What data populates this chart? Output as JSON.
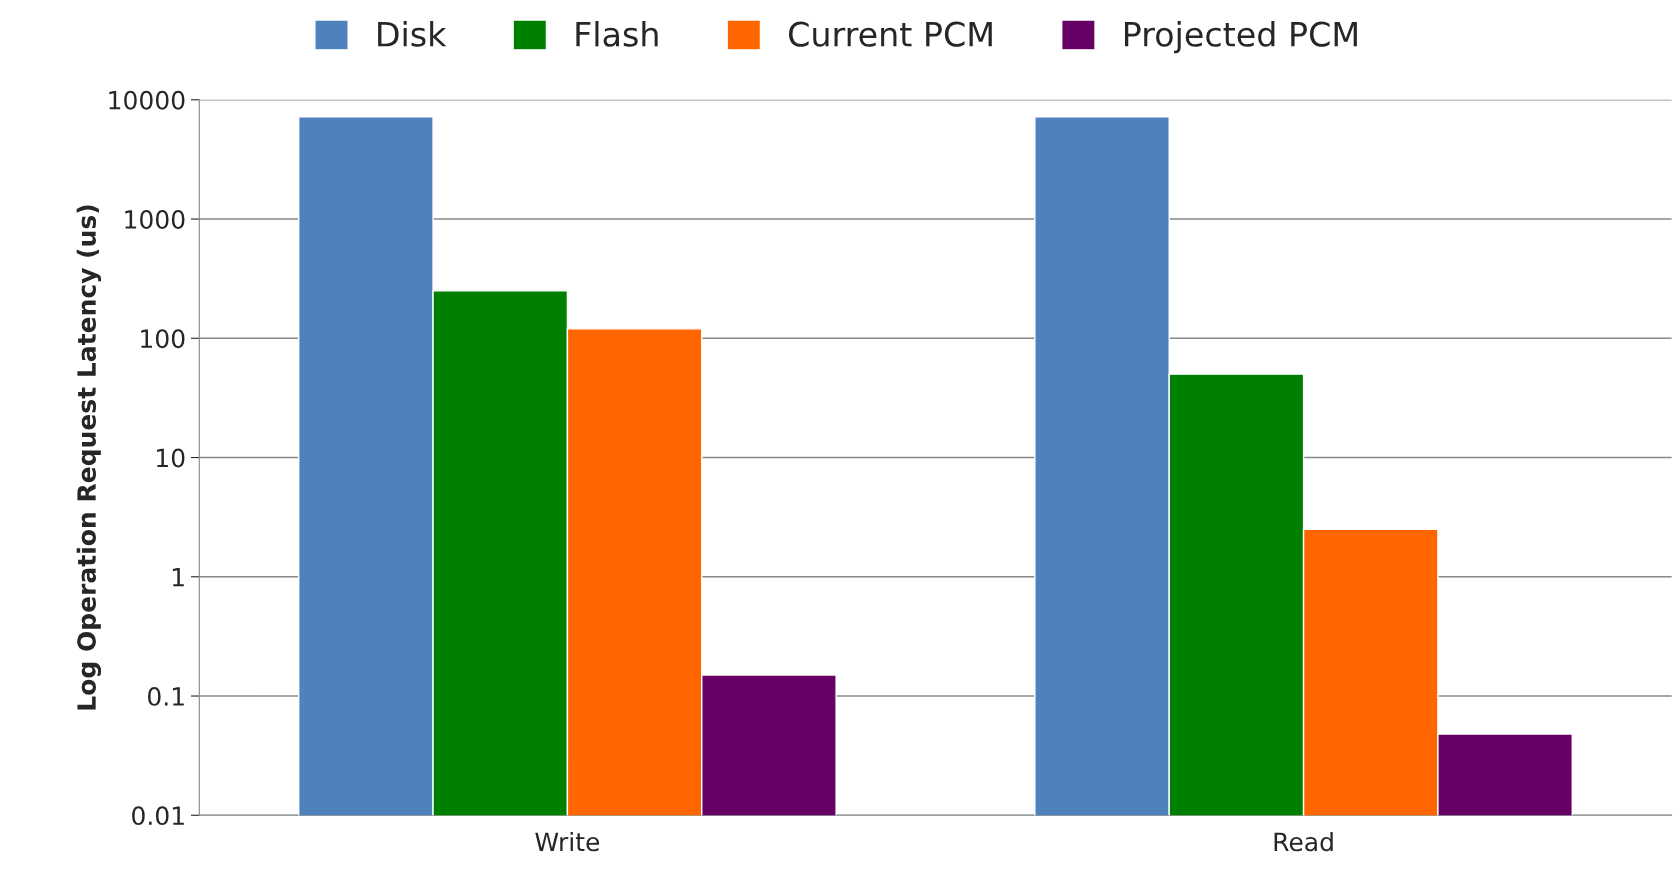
{
  "chart_data": {
    "type": "bar",
    "ylabel": "Log Operation Request Latency (us)",
    "categories": [
      "Write",
      "Read"
    ],
    "series": [
      {
        "name": "Disk",
        "color": "#4f81bd",
        "values": [
          7200,
          7200
        ]
      },
      {
        "name": "Flash",
        "color": "#008000",
        "values": [
          250,
          50
        ]
      },
      {
        "name": "Current PCM",
        "color": "#ff6600",
        "values": [
          120,
          2.5
        ]
      },
      {
        "name": "Projected PCM",
        "color": "#660066",
        "values": [
          0.15,
          0.048
        ]
      }
    ],
    "log": "y",
    "ylim": [
      0.01,
      10000
    ],
    "yticks": [
      0.01,
      0.1,
      1,
      10,
      100,
      1000,
      10000
    ],
    "grid": "y",
    "legend": "top"
  }
}
